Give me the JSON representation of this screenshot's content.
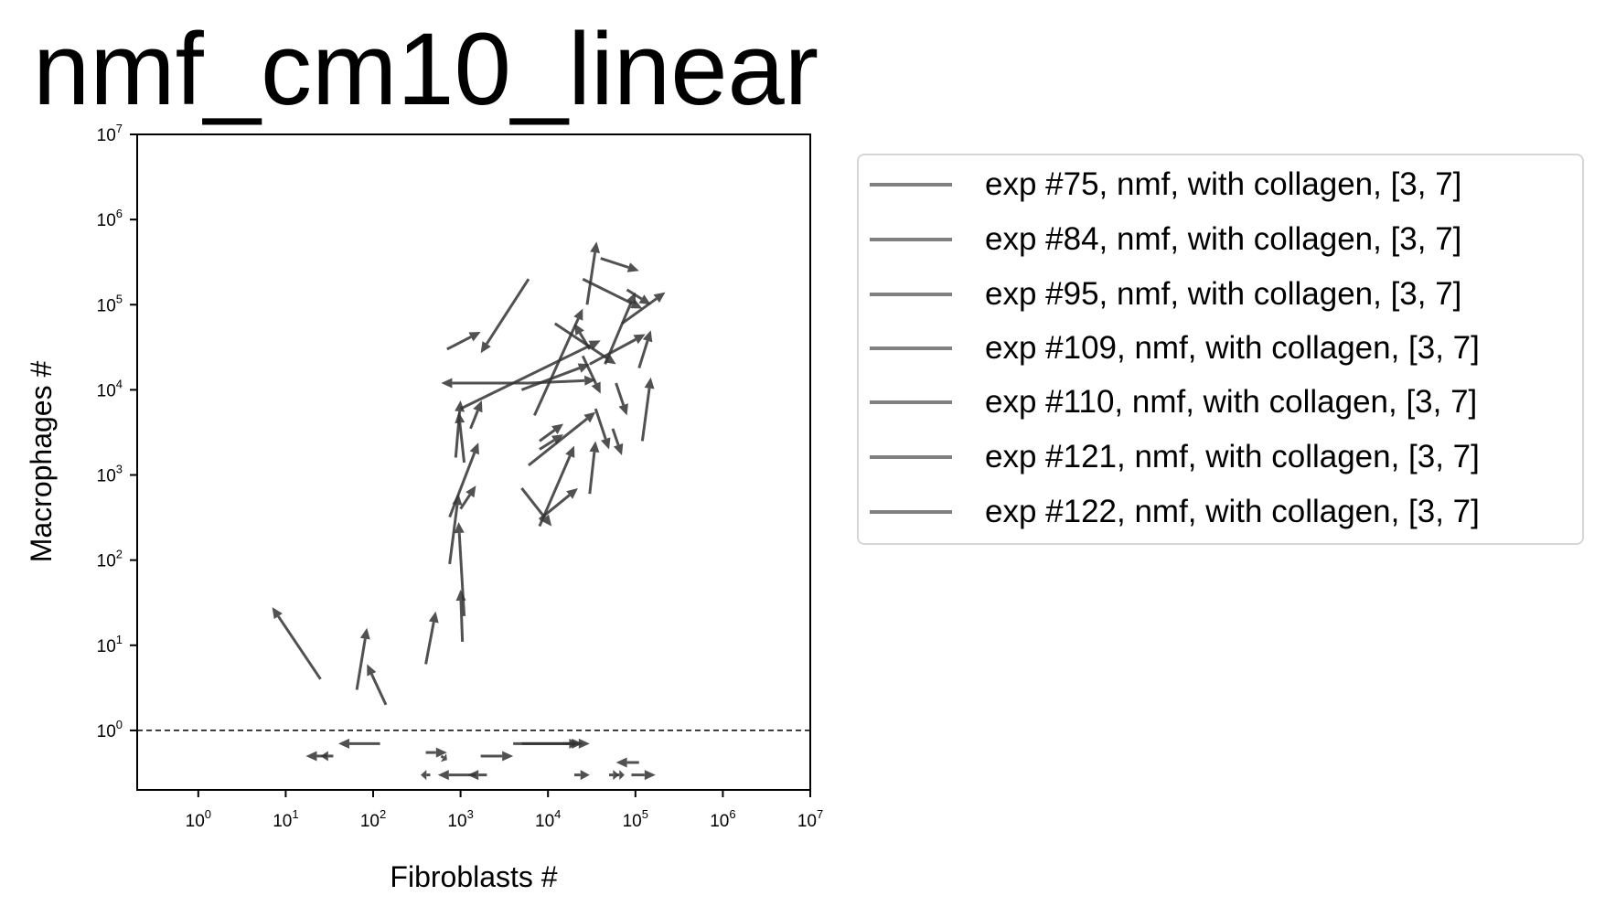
{
  "chart_data": {
    "type": "scatter",
    "title": "nmf_cm10_linear",
    "xlabel": "Fibroblasts #",
    "ylabel": "Macrophages #",
    "xscale": "log",
    "yscale": "log",
    "xlim": [
      0.2,
      10000000
    ],
    "ylim": [
      0.2,
      10000000
    ],
    "xticks": [
      {
        "base": "10",
        "exp": "0"
      },
      {
        "base": "10",
        "exp": "1"
      },
      {
        "base": "10",
        "exp": "2"
      },
      {
        "base": "10",
        "exp": "3"
      },
      {
        "base": "10",
        "exp": "4"
      },
      {
        "base": "10",
        "exp": "5"
      },
      {
        "base": "10",
        "exp": "6"
      },
      {
        "base": "10",
        "exp": "7"
      }
    ],
    "yticks": [
      {
        "base": "10",
        "exp": "0"
      },
      {
        "base": "10",
        "exp": "1"
      },
      {
        "base": "10",
        "exp": "2"
      },
      {
        "base": "10",
        "exp": "3"
      },
      {
        "base": "10",
        "exp": "4"
      },
      {
        "base": "10",
        "exp": "5"
      },
      {
        "base": "10",
        "exp": "6"
      },
      {
        "base": "10",
        "exp": "7"
      }
    ],
    "reference_line": {
      "y": 1,
      "style": "dashed"
    },
    "arrow_color": "#333333",
    "legend_line_color": "#808080",
    "legend_position": "outside-right",
    "legend": [
      "exp #75, nmf, with collagen, [3, 7]",
      "exp #84, nmf, with collagen, [3, 7]",
      "exp #95, nmf, with collagen, [3, 7]",
      "exp #109, nmf, with collagen, [3, 7]",
      "exp #110, nmf, with collagen, [3, 7]",
      "exp #121, nmf, with collagen, [3, 7]",
      "exp #122, nmf, with collagen, [3, 7]"
    ],
    "arrows": [
      {
        "from": [
          25,
          4
        ],
        "to": [
          7,
          28
        ]
      },
      {
        "from": [
          65,
          3
        ],
        "to": [
          85,
          16
        ]
      },
      {
        "from": [
          140,
          2
        ],
        "to": [
          85,
          6
        ]
      },
      {
        "from": [
          400,
          6
        ],
        "to": [
          520,
          25
        ]
      },
      {
        "from": [
          1050,
          11
        ],
        "to": [
          1000,
          45
        ]
      },
      {
        "from": [
          1100,
          22
        ],
        "to": [
          950,
          280
        ]
      },
      {
        "from": [
          750,
          90
        ],
        "to": [
          950,
          600
        ]
      },
      {
        "from": [
          750,
          320
        ],
        "to": [
          1600,
          2400
        ]
      },
      {
        "from": [
          1000,
          400
        ],
        "to": [
          1500,
          750
        ]
      },
      {
        "from": [
          880,
          1600
        ],
        "to": [
          1000,
          7500
        ]
      },
      {
        "from": [
          1100,
          1400
        ],
        "to": [
          950,
          5500
        ]
      },
      {
        "from": [
          1300,
          3500
        ],
        "to": [
          1750,
          7500
        ]
      },
      {
        "from": [
          700,
          30000
        ],
        "to": [
          1700,
          48000
        ]
      },
      {
        "from": [
          6000,
          200000
        ],
        "to": [
          1700,
          27000
        ]
      },
      {
        "from": [
          1000,
          6000
        ],
        "to": [
          40000,
          38000
        ]
      },
      {
        "from": [
          5000,
          10000
        ],
        "to": [
          30000,
          20000
        ]
      },
      {
        "from": [
          6000,
          12000
        ],
        "to": [
          600,
          12000
        ]
      },
      {
        "from": [
          6000,
          12000
        ],
        "to": [
          35000,
          13000
        ]
      },
      {
        "from": [
          7000,
          5000
        ],
        "to": [
          25000,
          90000
        ]
      },
      {
        "from": [
          28000,
          100000
        ],
        "to": [
          36000,
          550000
        ]
      },
      {
        "from": [
          25000,
          200000
        ],
        "to": [
          120000,
          90000
        ]
      },
      {
        "from": [
          40000,
          350000
        ],
        "to": [
          110000,
          250000
        ]
      },
      {
        "from": [
          12000,
          60000
        ],
        "to": [
          60000,
          20000
        ]
      },
      {
        "from": [
          30000,
          20000
        ],
        "to": [
          130000,
          45000
        ]
      },
      {
        "from": [
          45000,
          20000
        ],
        "to": [
          100000,
          140000
        ]
      },
      {
        "from": [
          70000,
          60000
        ],
        "to": [
          220000,
          140000
        ]
      },
      {
        "from": [
          80000,
          150000
        ],
        "to": [
          150000,
          100000
        ]
      },
      {
        "from": [
          110000,
          18000
        ],
        "to": [
          150000,
          50000
        ]
      },
      {
        "from": [
          120000,
          2500
        ],
        "to": [
          150000,
          14000
        ]
      },
      {
        "from": [
          60000,
          12000
        ],
        "to": [
          80000,
          5000
        ]
      },
      {
        "from": [
          35000,
          6000
        ],
        "to": [
          50000,
          2000
        ]
      },
      {
        "from": [
          25000,
          25000
        ],
        "to": [
          40000,
          9000
        ]
      },
      {
        "from": [
          30000,
          30000
        ],
        "to": [
          20000,
          60000
        ]
      },
      {
        "from": [
          55000,
          3500
        ],
        "to": [
          70000,
          1700
        ]
      },
      {
        "from": [
          8000,
          2000
        ],
        "to": [
          15000,
          3000
        ]
      },
      {
        "from": [
          8000,
          2500
        ],
        "to": [
          15000,
          4000
        ]
      },
      {
        "from": [
          6000,
          1300
        ],
        "to": [
          35000,
          5500
        ]
      },
      {
        "from": [
          8000,
          250
        ],
        "to": [
          20000,
          2200
        ]
      },
      {
        "from": [
          8000,
          300
        ],
        "to": [
          22000,
          700
        ]
      },
      {
        "from": [
          5000,
          700
        ],
        "to": [
          11000,
          250
        ]
      },
      {
        "from": [
          30000,
          600
        ],
        "to": [
          35000,
          2500
        ]
      },
      {
        "from": [
          120,
          0.7
        ],
        "to": [
          40,
          0.7
        ]
      },
      {
        "from": [
          35,
          0.5
        ],
        "to": [
          25,
          0.5
        ]
      },
      {
        "from": [
          30,
          0.5
        ],
        "to": [
          17,
          0.5
        ]
      },
      {
        "from": [
          400,
          0.55
        ],
        "to": [
          700,
          0.55
        ]
      },
      {
        "from": [
          600,
          0.5
        ],
        "to": [
          700,
          0.45
        ]
      },
      {
        "from": [
          1500,
          0.3
        ],
        "to": [
          550,
          0.3
        ]
      },
      {
        "from": [
          2000,
          0.3
        ],
        "to": [
          1200,
          0.3
        ]
      },
      {
        "from": [
          450,
          0.3
        ],
        "to": [
          350,
          0.3
        ]
      },
      {
        "from": [
          1700,
          0.5
        ],
        "to": [
          4000,
          0.5
        ]
      },
      {
        "from": [
          4000,
          0.7
        ],
        "to": [
          25000,
          0.7
        ]
      },
      {
        "from": [
          5000,
          0.7
        ],
        "to": [
          30000,
          0.7
        ]
      },
      {
        "from": [
          15000,
          0.7
        ],
        "to": [
          22000,
          0.7
        ]
      },
      {
        "from": [
          20000,
          0.3
        ],
        "to": [
          30000,
          0.3
        ]
      },
      {
        "from": [
          50000,
          0.3
        ],
        "to": [
          65000,
          0.3
        ]
      },
      {
        "from": [
          60000,
          0.3
        ],
        "to": [
          75000,
          0.3
        ]
      },
      {
        "from": [
          90000,
          0.3
        ],
        "to": [
          170000,
          0.3
        ]
      },
      {
        "from": [
          110000,
          0.42
        ],
        "to": [
          60000,
          0.42
        ]
      }
    ]
  }
}
